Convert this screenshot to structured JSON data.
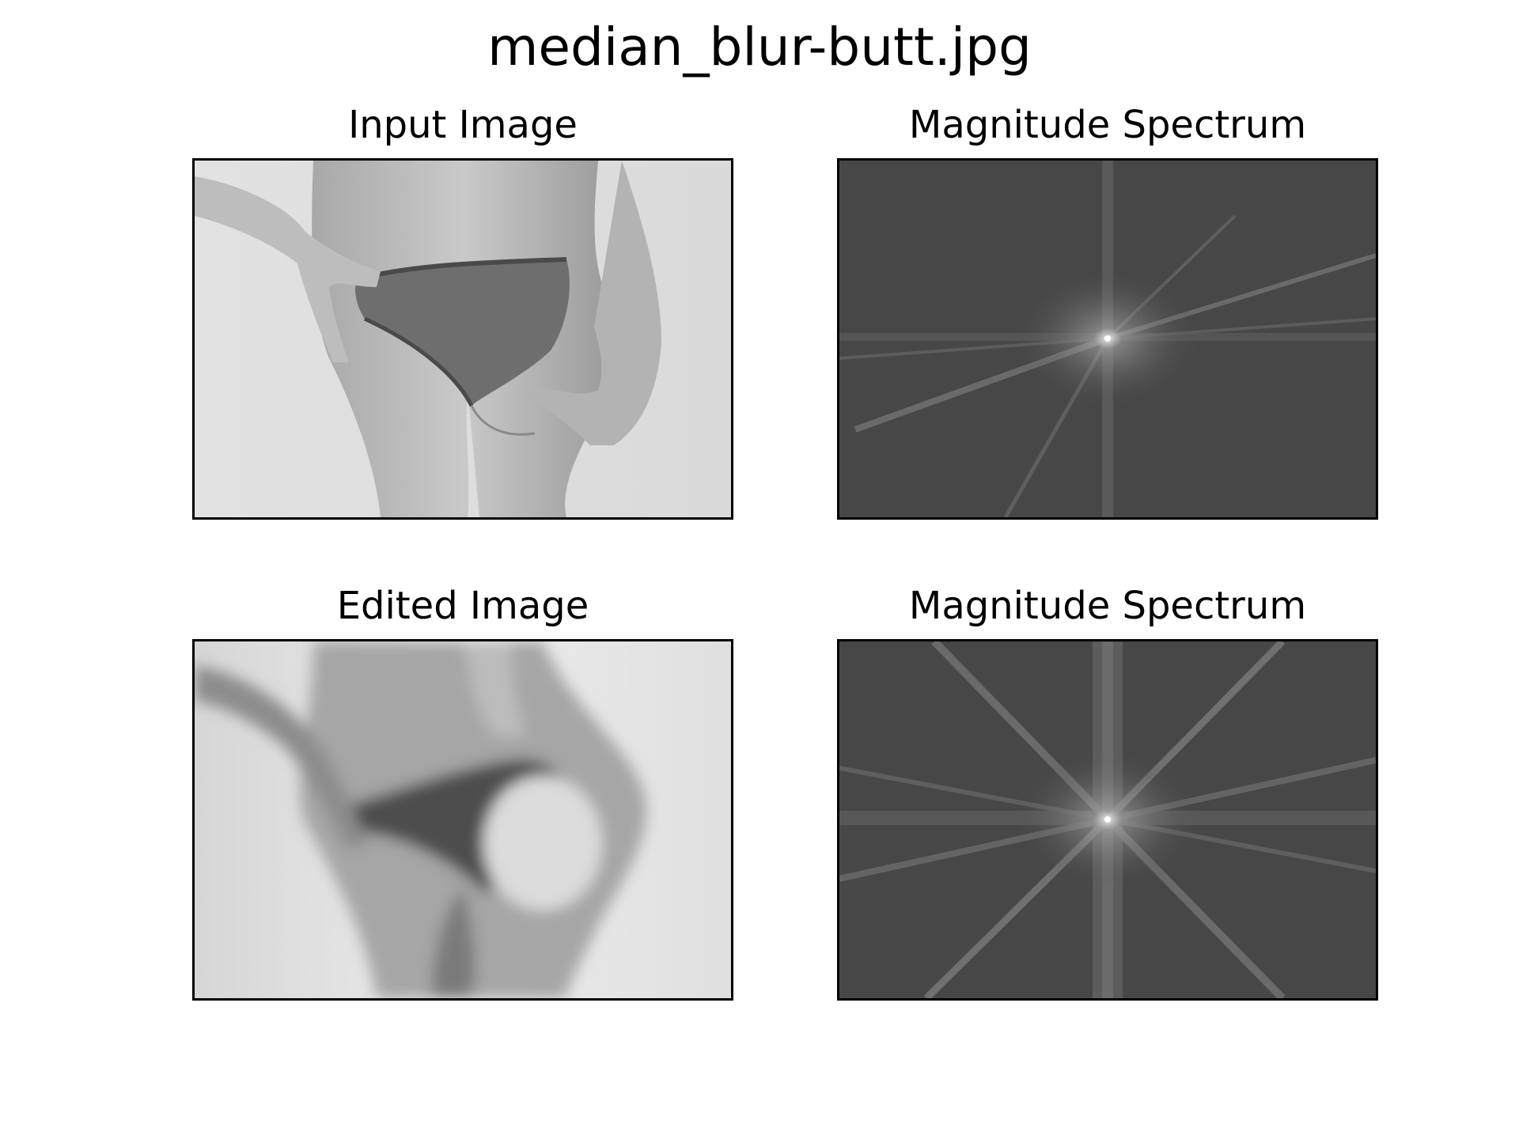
{
  "figure": {
    "title": "median_blur-butt.jpg"
  },
  "panels": [
    {
      "title": "Input Image",
      "kind": "photo",
      "variant": "sharp"
    },
    {
      "title": "Magnitude Spectrum",
      "kind": "spectrum",
      "variant": "input"
    },
    {
      "title": "Edited Image",
      "kind": "photo",
      "variant": "median-blurred"
    },
    {
      "title": "Magnitude Spectrum",
      "kind": "spectrum",
      "variant": "edited"
    }
  ],
  "colors": {
    "spectrum_background": "#474747",
    "photo_background": "#e6e6e6",
    "frame": "#000000"
  }
}
